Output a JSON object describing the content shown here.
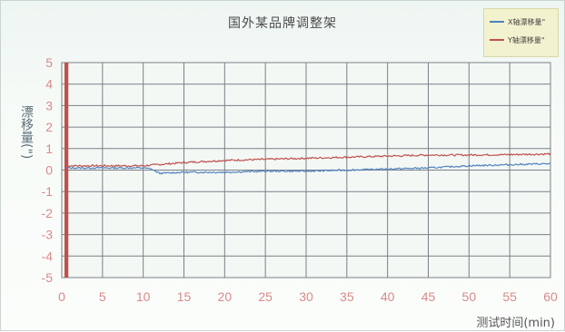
{
  "chart_data": {
    "type": "line",
    "title": "国外某品牌调整架",
    "xlabel": "测试时间(min)",
    "ylabel": "漂移量(\")",
    "xlim": [
      0,
      60
    ],
    "ylim": [
      -5,
      5
    ],
    "x_ticks": [
      "0",
      "5",
      "10",
      "15",
      "20",
      "25",
      "30",
      "35",
      "40",
      "45",
      "50",
      "55",
      "60"
    ],
    "y_ticks": [
      "5",
      "4",
      "3",
      "2",
      "1",
      "0",
      "-1",
      "-2",
      "-3",
      "-4",
      "-5"
    ],
    "grid": true,
    "legend_position": "top-right",
    "series": [
      {
        "name": "X轴漂移量\"",
        "color": "#4f81bd",
        "x": [
          0.6,
          1,
          5,
          10,
          11,
          12,
          15,
          20,
          25,
          30,
          35,
          40,
          45,
          50,
          55,
          60
        ],
        "values": [
          0.1,
          0.1,
          0.1,
          0.1,
          0.05,
          -0.15,
          -0.1,
          -0.1,
          -0.05,
          -0.05,
          0.0,
          0.05,
          0.1,
          0.2,
          0.25,
          0.3
        ]
      },
      {
        "name": "Y轴漂移量\"",
        "color": "#c0504d",
        "x": [
          0.6,
          1,
          5,
          10,
          15,
          20,
          25,
          30,
          35,
          40,
          45,
          50,
          55,
          60
        ],
        "values": [
          0.2,
          0.2,
          0.2,
          0.2,
          0.35,
          0.45,
          0.5,
          0.55,
          0.6,
          0.65,
          0.7,
          0.7,
          0.72,
          0.75
        ]
      }
    ]
  }
}
